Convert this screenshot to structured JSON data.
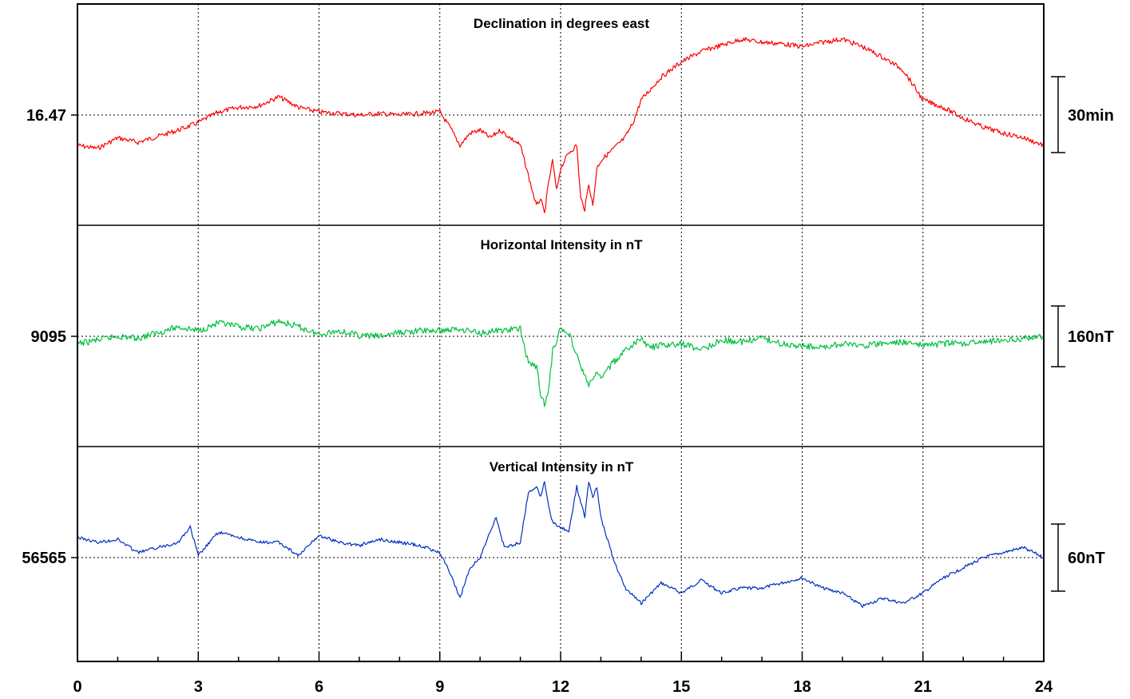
{
  "chart_data": {
    "type": "line",
    "x_range": [
      0,
      24
    ],
    "x_ticks": [
      0,
      3,
      6,
      9,
      12,
      15,
      18,
      21,
      24
    ],
    "grid": true,
    "panels": [
      {
        "title": "Declination in degrees east",
        "baseline_label": "16.47",
        "scale_label": "30min",
        "color": "#ff0000",
        "series": {
          "x": [
            0,
            0.5,
            1,
            1.5,
            2,
            2.5,
            3,
            3.5,
            4,
            4.5,
            5,
            5.5,
            6,
            6.5,
            7,
            7.5,
            8,
            8.5,
            9,
            9.25,
            9.5,
            9.75,
            10,
            10.25,
            10.5,
            10.75,
            11,
            11.2,
            11.4,
            11.5,
            11.6,
            11.7,
            11.8,
            11.9,
            12,
            12.2,
            12.4,
            12.5,
            12.6,
            12.7,
            12.8,
            12.9,
            13,
            13.2,
            13.4,
            13.6,
            13.8,
            14,
            14.5,
            15,
            15.5,
            16,
            16.5,
            17,
            17.5,
            18,
            18.5,
            19,
            19.5,
            20,
            20.5,
            21,
            21.5,
            22,
            22.5,
            23,
            23.5,
            24
          ],
          "y": [
            -0.2,
            -0.22,
            -0.15,
            -0.18,
            -0.14,
            -0.1,
            -0.05,
            0.02,
            0.05,
            0.06,
            0.12,
            0.05,
            0.02,
            0.01,
            0,
            0.01,
            0,
            0.01,
            0.02,
            -0.08,
            -0.2,
            -0.12,
            -0.1,
            -0.15,
            -0.1,
            -0.15,
            -0.2,
            -0.4,
            -0.6,
            -0.55,
            -0.65,
            -0.45,
            -0.3,
            -0.5,
            -0.35,
            -0.25,
            -0.2,
            -0.55,
            -0.62,
            -0.45,
            -0.6,
            -0.35,
            -0.3,
            -0.25,
            -0.2,
            -0.15,
            -0.05,
            0.1,
            0.25,
            0.35,
            0.42,
            0.46,
            0.5,
            0.48,
            0.47,
            0.45,
            0.48,
            0.5,
            0.45,
            0.38,
            0.3,
            0.1,
            0.05,
            -0.02,
            -0.08,
            -0.12,
            -0.15,
            -0.2
          ]
        }
      },
      {
        "title": "Horizontal Intensity in nT",
        "baseline_label": "9095",
        "scale_label": "160nT",
        "color": "#00c040",
        "series": {
          "x": [
            0,
            0.5,
            1,
            1.5,
            2,
            2.5,
            3,
            3.5,
            4,
            4.5,
            5,
            5.5,
            6,
            6.5,
            7,
            7.5,
            8,
            8.5,
            9,
            9.5,
            10,
            10.5,
            11,
            11.2,
            11.4,
            11.5,
            11.6,
            11.7,
            11.8,
            12,
            12.2,
            12.5,
            12.7,
            12.9,
            13,
            13.3,
            13.6,
            14,
            14.2,
            14.5,
            15,
            15.5,
            16,
            16.5,
            17,
            17.5,
            18,
            18.5,
            19,
            19.5,
            20,
            20.5,
            21,
            21.5,
            22,
            22.5,
            23,
            23.5,
            24
          ],
          "y": [
            -20,
            -10,
            0,
            -5,
            10,
            25,
            15,
            35,
            25,
            20,
            40,
            25,
            5,
            15,
            2,
            0,
            10,
            15,
            15,
            20,
            10,
            15,
            20,
            -70,
            -80,
            -150,
            -180,
            -150,
            -40,
            20,
            10,
            -80,
            -130,
            -100,
            -110,
            -70,
            -40,
            -5,
            -30,
            -25,
            -20,
            -35,
            -10,
            -15,
            -5,
            -20,
            -25,
            -30,
            -20,
            -25,
            -20,
            -15,
            -25,
            -20,
            -18,
            -15,
            -10,
            -5,
            0
          ]
        }
      },
      {
        "title": "Vertical Intensity in nT",
        "baseline_label": "56565",
        "scale_label": "60nT",
        "color": "#0030c0",
        "series": {
          "x": [
            0,
            0.5,
            1,
            1.5,
            2,
            2.5,
            2.8,
            3,
            3.5,
            4,
            4.5,
            5,
            5.5,
            6,
            6.5,
            7,
            7.5,
            8,
            8.5,
            9,
            9.25,
            9.5,
            9.75,
            10,
            10.4,
            10.6,
            11,
            11.2,
            11.4,
            11.5,
            11.6,
            11.7,
            11.8,
            12,
            12.2,
            12.4,
            12.5,
            12.6,
            12.7,
            12.8,
            12.9,
            13,
            13.3,
            13.6,
            14,
            14.5,
            15,
            15.5,
            16,
            16.5,
            17,
            17.5,
            18,
            18.5,
            19,
            19.5,
            20,
            20.5,
            21,
            21.5,
            22,
            22.5,
            23,
            23.5,
            24
          ],
          "y": [
            20,
            15,
            18,
            5,
            10,
            15,
            30,
            2,
            25,
            20,
            15,
            15,
            2,
            22,
            15,
            12,
            18,
            15,
            12,
            5,
            -15,
            -40,
            -10,
            0,
            40,
            10,
            15,
            65,
            70,
            60,
            75,
            50,
            35,
            30,
            25,
            70,
            55,
            40,
            75,
            60,
            70,
            40,
            0,
            -30,
            -45,
            -25,
            -35,
            -22,
            -35,
            -30,
            -30,
            -25,
            -20,
            -30,
            -35,
            -48,
            -40,
            -45,
            -35,
            -20,
            -10,
            0,
            5,
            10,
            0
          ]
        }
      }
    ]
  }
}
